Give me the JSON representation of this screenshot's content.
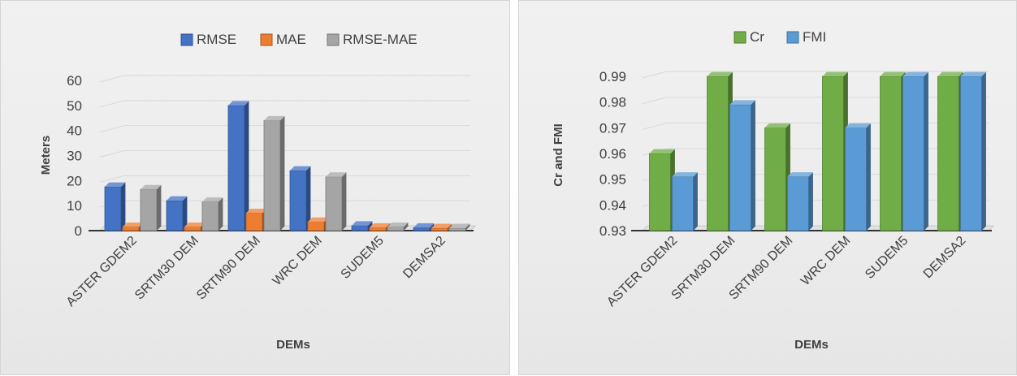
{
  "chart_data": [
    {
      "type": "bar",
      "categories": [
        "ASTER GDEM2",
        "SRTM30 DEM",
        "SRTM90 DEM",
        "WRC DEM",
        "SUDEM5",
        "DEMSA2"
      ],
      "series": [
        {
          "name": "RMSE",
          "values": [
            17.5,
            12,
            50,
            24,
            2,
            1.2
          ],
          "color": "#4472c4"
        },
        {
          "name": "MAE",
          "values": [
            1.5,
            1.5,
            7,
            3.5,
            1.2,
            1
          ],
          "color": "#ed7d31"
        },
        {
          "name": "RMSE-MAE",
          "values": [
            16.5,
            11.5,
            44,
            21.5,
            1.5,
            1
          ],
          "color": "#a5a5a5"
        }
      ],
      "xlabel": "DEMs",
      "ylabel": "Meters",
      "ylim": [
        0,
        60
      ],
      "yticks": [
        "0",
        "10",
        "20",
        "30",
        "40",
        "50",
        "60"
      ],
      "grid": true,
      "legend": "top"
    },
    {
      "type": "bar",
      "categories": [
        "ASTER GDEM2",
        "SRTM30 DEM",
        "SRTM90 DEM",
        "WRC DEM",
        "SUDEM5",
        "DEMSA2"
      ],
      "series": [
        {
          "name": "Cr",
          "values": [
            0.96,
            0.99,
            0.97,
            0.99,
            0.99,
            0.99
          ],
          "color": "#70ad47"
        },
        {
          "name": "FMI",
          "values": [
            0.951,
            0.979,
            0.951,
            0.97,
            0.99,
            0.99
          ],
          "color": "#5b9bd5"
        }
      ],
      "xlabel": "DEMs",
      "ylabel": "Cr and FMI",
      "ylim": [
        0.93,
        0.99
      ],
      "yticks": [
        "0.93",
        "0.94",
        "0.95",
        "0.96",
        "0.97",
        "0.98",
        "0.99"
      ],
      "grid": true,
      "legend": "top"
    }
  ]
}
